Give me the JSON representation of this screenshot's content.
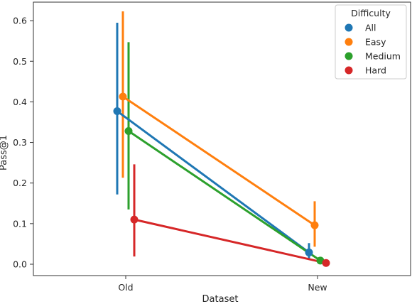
{
  "chart_data": {
    "type": "line",
    "subtype": "pointplot-with-error-bars",
    "title": "",
    "xlabel": "Dataset",
    "ylabel": "Pass@1",
    "categories": [
      "Old",
      "New"
    ],
    "ylim": [
      -0.02,
      0.65
    ],
    "yticks": [
      0.0,
      0.1,
      0.2,
      0.3,
      0.4,
      0.5,
      0.6
    ],
    "ytick_labels": [
      "0.0",
      "0.1",
      "0.2",
      "0.3",
      "0.4",
      "0.5",
      "0.6"
    ],
    "grid": false,
    "legend": {
      "title": "Difficulty",
      "placement": "top-right"
    },
    "series": [
      {
        "name": "All",
        "color": "#1f77b4",
        "values": [
          0.377,
          0.029
        ],
        "ci_low": [
          0.172,
          0.012
        ],
        "ci_high": [
          0.595,
          0.052
        ]
      },
      {
        "name": "Easy",
        "color": "#ff7f0e",
        "values": [
          0.413,
          0.096
        ],
        "ci_low": [
          0.213,
          0.043
        ],
        "ci_high": [
          0.623,
          0.155
        ]
      },
      {
        "name": "Medium",
        "color": "#2ca02c",
        "values": [
          0.328,
          0.009
        ],
        "ci_low": [
          0.135,
          0.002
        ],
        "ci_high": [
          0.547,
          0.018
        ]
      },
      {
        "name": "Hard",
        "color": "#d62728",
        "values": [
          0.11,
          0.003
        ],
        "ci_low": [
          0.019,
          0.0
        ],
        "ci_high": [
          0.246,
          0.006
        ]
      }
    ]
  }
}
